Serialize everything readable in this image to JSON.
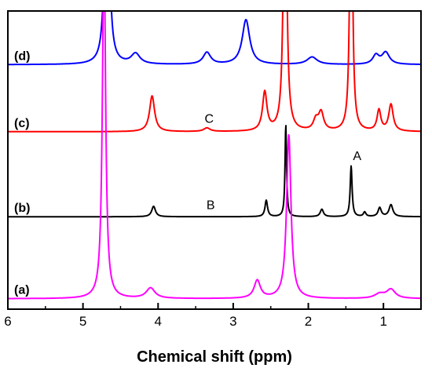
{
  "chart_data": {
    "type": "line",
    "title": "",
    "xlabel": "Chemical shift (ppm)",
    "ylabel": "",
    "xlim": [
      6,
      0.5
    ],
    "x_reversed": true,
    "xticks": [
      "6",
      "5",
      "4",
      "3",
      "2",
      "1"
    ],
    "xtick_values": [
      6,
      5,
      4,
      3,
      2,
      1
    ],
    "yaxis_ticks": false,
    "grid": false,
    "legend": "none",
    "series": [
      {
        "name": "(d)",
        "color": "#0000ff",
        "baseline": 0.82,
        "peaks": [
          {
            "x": 4.68,
            "h": 1.2,
            "w": 0.025
          },
          {
            "x": 4.3,
            "h": 0.035,
            "w": 0.07
          },
          {
            "x": 3.35,
            "h": 0.04,
            "w": 0.06
          },
          {
            "x": 2.83,
            "h": 0.15,
            "w": 0.06
          },
          {
            "x": 1.95,
            "h": 0.025,
            "w": 0.08
          },
          {
            "x": 1.1,
            "h": 0.03,
            "w": 0.05
          },
          {
            "x": 0.97,
            "h": 0.04,
            "w": 0.06
          }
        ]
      },
      {
        "name": "(c)",
        "color": "#ff0000",
        "baseline": 0.595,
        "peaks": [
          {
            "x": 4.08,
            "h": 0.12,
            "w": 0.04
          },
          {
            "x": 3.35,
            "h": 0.012,
            "w": 0.05
          },
          {
            "x": 2.58,
            "h": 0.13,
            "w": 0.035
          },
          {
            "x": 2.31,
            "h": 1.2,
            "w": 0.022
          },
          {
            "x": 1.83,
            "h": 0.06,
            "w": 0.04
          },
          {
            "x": 1.9,
            "h": 0.035,
            "w": 0.04
          },
          {
            "x": 1.43,
            "h": 1.2,
            "w": 0.018
          },
          {
            "x": 1.06,
            "h": 0.07,
            "w": 0.03
          },
          {
            "x": 0.9,
            "h": 0.09,
            "w": 0.035
          }
        ]
      },
      {
        "name": "(b)",
        "color": "#000000",
        "baseline": 0.31,
        "peaks": [
          {
            "x": 4.06,
            "h": 0.035,
            "w": 0.03
          },
          {
            "x": 2.56,
            "h": 0.055,
            "w": 0.02
          },
          {
            "x": 2.3,
            "h": 0.31,
            "w": 0.012
          },
          {
            "x": 1.82,
            "h": 0.025,
            "w": 0.025
          },
          {
            "x": 1.43,
            "h": 0.17,
            "w": 0.015
          },
          {
            "x": 1.25,
            "h": 0.015,
            "w": 0.02
          },
          {
            "x": 1.05,
            "h": 0.03,
            "w": 0.025
          },
          {
            "x": 0.9,
            "h": 0.04,
            "w": 0.03
          }
        ]
      },
      {
        "name": "(a)",
        "color": "#ff00ff",
        "baseline": 0.035,
        "peaks": [
          {
            "x": 4.72,
            "h": 1.2,
            "w": 0.025
          },
          {
            "x": 4.1,
            "h": 0.035,
            "w": 0.07
          },
          {
            "x": 2.68,
            "h": 0.06,
            "w": 0.05
          },
          {
            "x": 2.26,
            "h": 0.55,
            "w": 0.035
          },
          {
            "x": 1.05,
            "h": 0.015,
            "w": 0.08
          },
          {
            "x": 0.9,
            "h": 0.03,
            "w": 0.07
          }
        ]
      }
    ],
    "annotations": [
      {
        "text": "A",
        "x": 1.35,
        "y": 0.5
      },
      {
        "text": "B",
        "x": 3.3,
        "y": 0.335
      },
      {
        "text": "C",
        "x": 3.32,
        "y": 0.625
      }
    ]
  }
}
